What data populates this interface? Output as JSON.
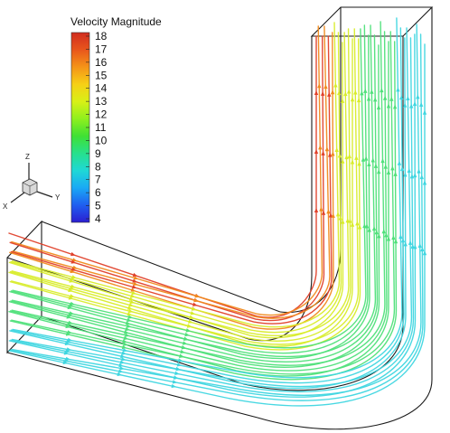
{
  "legend": {
    "title": "Velocity Magnitude",
    "ticks": [
      "18",
      "17",
      "16",
      "15",
      "14",
      "13",
      "12",
      "11",
      "10",
      "9",
      "8",
      "7",
      "6",
      "5",
      "4"
    ],
    "min": 4,
    "max": 18,
    "colormap": [
      "#2b1ed1",
      "#1f5ef0",
      "#1aa9f5",
      "#1fd8d6",
      "#27e08c",
      "#3fe034",
      "#8ff01e",
      "#d8f016",
      "#f6d016",
      "#f59418",
      "#e8561c",
      "#d12c1f"
    ]
  },
  "orientation_triad": {
    "axes": [
      "Z",
      "Y",
      "X"
    ]
  },
  "streamline_colors": {
    "slow": "#3fd6e0",
    "medium": "#4fe07a",
    "fast": "#d8ec2a",
    "peak": "#e0402a"
  }
}
